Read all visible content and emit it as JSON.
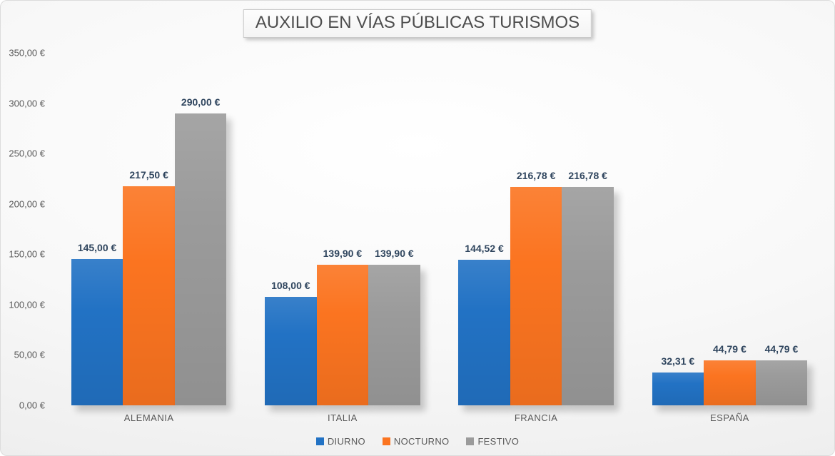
{
  "chart_data": {
    "type": "bar",
    "title": "AUXILIO EN VÍAS PÚBLICAS TURISMOS",
    "categories": [
      "ALEMANIA",
      "ITALIA",
      "FRANCIA",
      "ESPAÑA"
    ],
    "series": [
      {
        "name": "DIURNO",
        "color": "#2272C4",
        "values": [
          145.0,
          108.0,
          144.52,
          32.31
        ],
        "labels": [
          "145,00 €",
          "108,00 €",
          "144,52 €",
          "32,31 €"
        ]
      },
      {
        "name": "NOCTURNO",
        "color": "#FB7420",
        "values": [
          217.5,
          139.9,
          216.78,
          44.79
        ],
        "labels": [
          "217,50 €",
          "139,90 €",
          "216,78 €",
          "44,79 €"
        ]
      },
      {
        "name": "FESTIVO",
        "color": "#9B9B9B",
        "values": [
          290.0,
          139.9,
          216.78,
          44.79
        ],
        "labels": [
          "290,00 €",
          "139,90 €",
          "216,78 €",
          "44,79 €"
        ]
      }
    ],
    "y_axis": {
      "min": 0,
      "max": 350,
      "step": 50,
      "tick_labels": [
        "0,00 €",
        "50,00 €",
        "100,00 €",
        "150,00 €",
        "200,00 €",
        "250,00 €",
        "300,00 €",
        "350,00 €"
      ]
    },
    "xlabel": "",
    "ylabel": "",
    "legend_position": "bottom",
    "grid": false,
    "data_label_color": "#2F455E",
    "axis_label_color": "#595959"
  }
}
